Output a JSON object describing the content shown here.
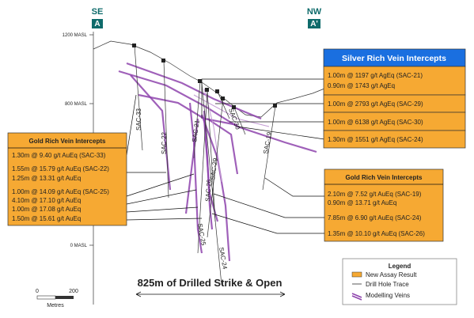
{
  "section": {
    "left_label": "SE",
    "left_marker": "A",
    "right_label": "NW",
    "right_marker": "A'"
  },
  "elevations": [
    "1200 MASL",
    "800 MASL",
    "0 MASL"
  ],
  "holes": [
    "SAC-33",
    "SAC-22",
    "SAC-21",
    "SAC-29",
    "SAC-30",
    "SAC-26",
    "SAC-25",
    "SAC-24",
    "SAC-19"
  ],
  "silver_box": {
    "title": "Silver Rich Vein Intercepts",
    "rows": [
      [
        "1.00m @ 1197 g/t AgEq (SAC-21)",
        "0.90m @ 1743 g/t AgEq"
      ],
      [
        "1.00m @ 2793 g/t AgEq (SAC-29)"
      ],
      [
        "1.00m @ 6138 g/t AgEq (SAC-30)"
      ],
      [
        "1.30m @ 1551 g/t AgEq (SAC-24)"
      ]
    ]
  },
  "gold_left": {
    "title": "Gold Rich Vein Intercepts",
    "groups": [
      [
        "1.30m @ 9.40 g/t AuEq (SAC-33)"
      ],
      [
        "1.55m @ 15.79 g/t AuEq (SAC-22)",
        "1.25m @ 13.31 g/t AuEq"
      ],
      [
        "1.00m @ 14.09 g/t AuEq (SAC-25)",
        "4.10m @ 17.10 g/t AuEq",
        "1.00m @ 17.08 g/t AuEq",
        "1.50m @ 15.61 g/t AuEq"
      ]
    ]
  },
  "gold_right": {
    "title": "Gold Rich Vein Intercepts",
    "groups": [
      [
        "2.10m @ 7.52 g/t AuEq (SAC-19)",
        "0.90m @ 13.71 g/t AuEq"
      ],
      [
        "7.85m @ 6.90 g/t AuEq (SAC-24)"
      ],
      [
        "1.35m @ 10.10 g/t AuEq (SAC-26)"
      ]
    ]
  },
  "strike": "825m of Drilled Strike & Open",
  "scale": {
    "start": "0",
    "end": "200",
    "unit": "Metres"
  },
  "legend": {
    "title": "Legend",
    "items": [
      "New Assay Result",
      "Drill Hole Trace",
      "Modelling Veins"
    ]
  }
}
